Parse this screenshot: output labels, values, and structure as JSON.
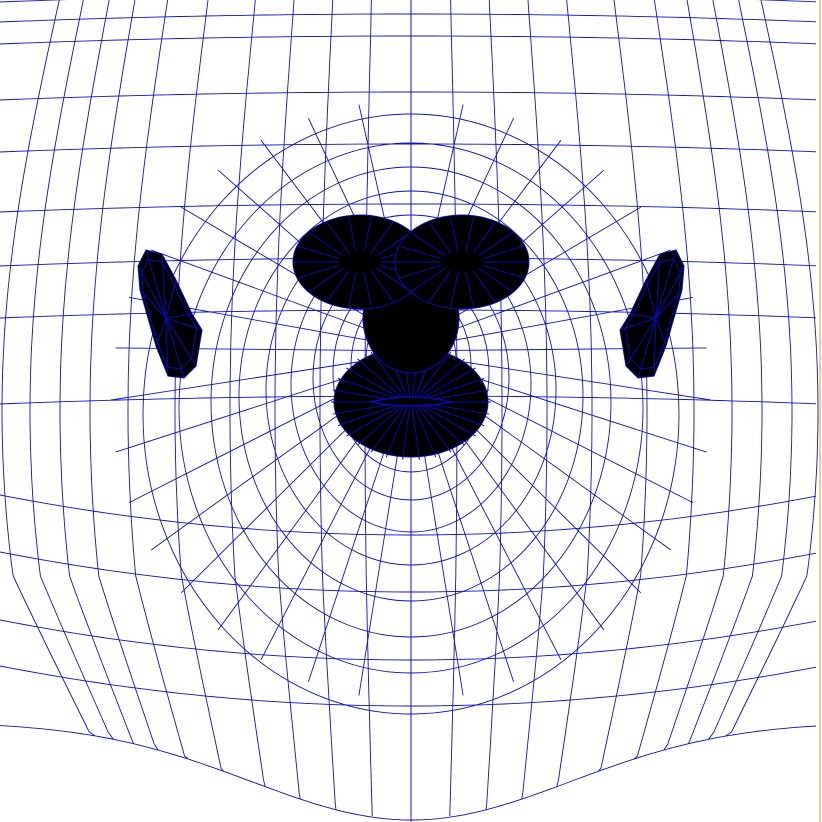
{
  "image": {
    "subject": "uv-wireframe-face-mesh",
    "background_color": "#ffffff",
    "wire_color": "#1010c8",
    "dense_wire_color": "#0a0ab0",
    "right_edge_color": "#d8d890"
  }
}
